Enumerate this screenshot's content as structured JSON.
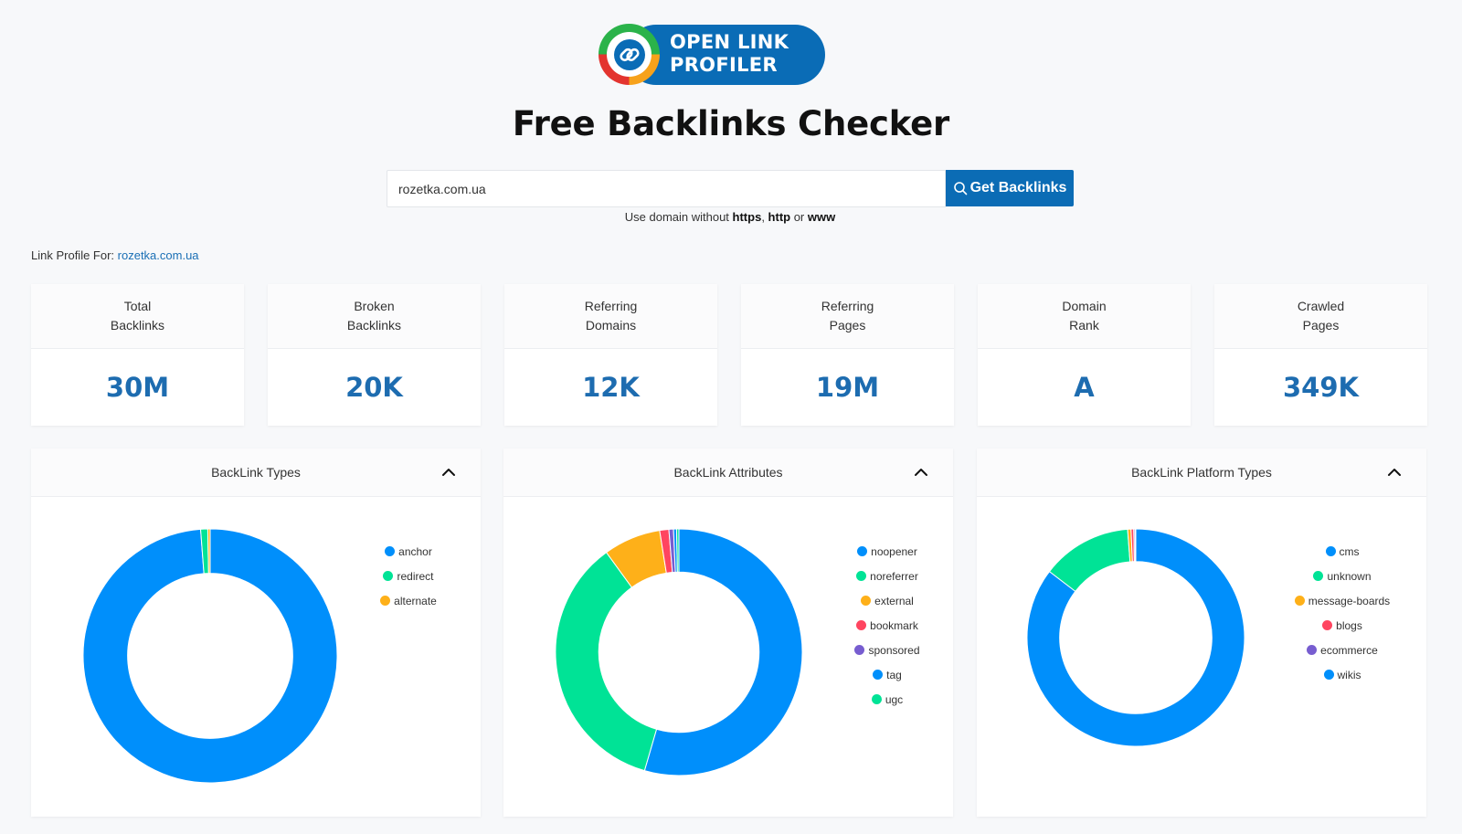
{
  "logo": {
    "line1": "OPEN LINK",
    "line2": "PROFILER"
  },
  "title": "Free Backlinks Checker",
  "search": {
    "value": "rozetka.com.ua",
    "placeholder": "",
    "button_label": "Get Backlinks"
  },
  "hint": {
    "prefix": "Use domain without ",
    "b1": "https",
    "sep1": ", ",
    "b2": "http",
    "sep2": " or ",
    "b3": "www"
  },
  "profile": {
    "label": "Link Profile For: ",
    "domain": "rozetka.com.ua"
  },
  "stats": [
    {
      "line1": "Total",
      "line2": "Backlinks",
      "value": "30M"
    },
    {
      "line1": "Broken",
      "line2": "Backlinks",
      "value": "20K"
    },
    {
      "line1": "Referring",
      "line2": "Domains",
      "value": "12K"
    },
    {
      "line1": "Referring",
      "line2": "Pages",
      "value": "19M"
    },
    {
      "line1": "Domain",
      "line2": "Rank",
      "value": "A"
    },
    {
      "line1": "Crawled",
      "line2": "Pages",
      "value": "349K"
    }
  ],
  "colors": {
    "blue": "#008ffb",
    "green": "#00e396",
    "orange": "#feb019",
    "red": "#ff4560",
    "purple": "#775dd0",
    "accent": "#0b6cb5"
  },
  "chart_data": [
    {
      "type": "pie",
      "title": "BackLink Types",
      "categories": [
        "anchor",
        "redirect",
        "alternate"
      ],
      "values": [
        98.8,
        0.9,
        0.3
      ],
      "colors": [
        "#008ffb",
        "#00e396",
        "#feb019"
      ]
    },
    {
      "type": "pie",
      "title": "BackLink Attributes",
      "categories": [
        "noopener",
        "noreferrer",
        "external",
        "bookmark",
        "sponsored",
        "tag",
        "ugc"
      ],
      "values": [
        54.5,
        35.5,
        7.5,
        1.2,
        0.6,
        0.4,
        0.3
      ],
      "colors": [
        "#008ffb",
        "#00e396",
        "#feb019",
        "#ff4560",
        "#775dd0",
        "#008ffb",
        "#00e396"
      ]
    },
    {
      "type": "pie",
      "title": "BackLink Platform Types",
      "categories": [
        "cms",
        "unknown",
        "message-boards",
        "blogs",
        "ecommerce",
        "wikis"
      ],
      "values": [
        85.4,
        13.4,
        0.5,
        0.4,
        0.2,
        0.1
      ],
      "colors": [
        "#008ffb",
        "#00e396",
        "#feb019",
        "#ff4560",
        "#775dd0",
        "#008ffb"
      ]
    }
  ]
}
